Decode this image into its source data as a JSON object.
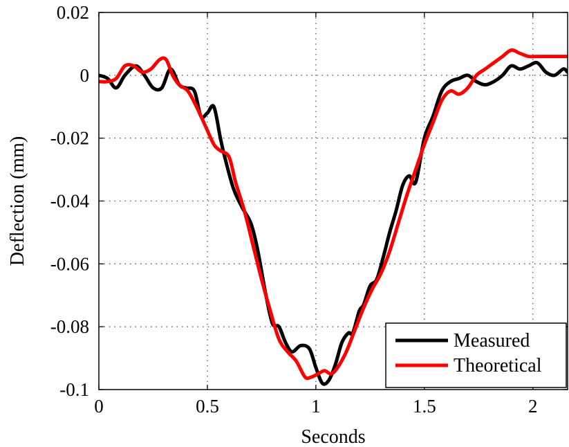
{
  "chart_data": {
    "type": "line",
    "title": "",
    "xlabel": "Seconds",
    "ylabel": "Deflection (mm)",
    "xlim": [
      0,
      2.16
    ],
    "ylim": [
      -0.1,
      0.02
    ],
    "xticks": [
      0,
      0.5,
      1,
      1.5,
      2
    ],
    "xtick_labels": [
      "0",
      "0.5",
      "1",
      "1.5",
      "2"
    ],
    "yticks": [
      0.02,
      0,
      -0.02,
      -0.04,
      -0.06,
      -0.08,
      -0.1
    ],
    "ytick_labels": [
      "0.02",
      "0",
      "-0.02",
      "-0.04",
      "-0.06",
      "-0.08",
      "-0.1"
    ],
    "grid": true,
    "legend_position": "bottom-right",
    "series": [
      {
        "name": "Measured",
        "color": "#000000",
        "x": [
          0,
          0.04,
          0.08,
          0.12,
          0.17,
          0.21,
          0.25,
          0.29,
          0.33,
          0.37,
          0.4,
          0.44,
          0.47,
          0.5,
          0.53,
          0.56,
          0.58,
          0.62,
          0.66,
          0.7,
          0.73,
          0.77,
          0.8,
          0.83,
          0.86,
          0.89,
          0.93,
          0.97,
          1.0,
          1.03,
          1.06,
          1.09,
          1.12,
          1.15,
          1.17,
          1.2,
          1.22,
          1.25,
          1.28,
          1.31,
          1.34,
          1.37,
          1.4,
          1.43,
          1.46,
          1.5,
          1.54,
          1.58,
          1.62,
          1.66,
          1.7,
          1.74,
          1.78,
          1.82,
          1.86,
          1.9,
          1.94,
          1.98,
          2.02,
          2.06,
          2.1,
          2.14,
          2.16
        ],
        "y": [
          0.0,
          -0.001,
          -0.004,
          0.0,
          0.003,
          0.0,
          -0.004,
          -0.004,
          0.002,
          -0.003,
          -0.004,
          -0.005,
          -0.013,
          -0.012,
          -0.01,
          -0.02,
          -0.026,
          -0.036,
          -0.042,
          -0.047,
          -0.055,
          -0.07,
          -0.079,
          -0.08,
          -0.085,
          -0.088,
          -0.086,
          -0.087,
          -0.093,
          -0.098,
          -0.097,
          -0.092,
          -0.085,
          -0.082,
          -0.082,
          -0.075,
          -0.073,
          -0.067,
          -0.065,
          -0.058,
          -0.05,
          -0.043,
          -0.035,
          -0.032,
          -0.034,
          -0.02,
          -0.013,
          -0.005,
          -0.002,
          -0.001,
          0.0,
          -0.002,
          -0.003,
          -0.002,
          0.0,
          0.003,
          0.002,
          0.003,
          0.004,
          0.001,
          0.0,
          0.002,
          0.001
        ]
      },
      {
        "name": "Theoretical",
        "color": "#ff0000",
        "x": [
          0,
          0.04,
          0.08,
          0.12,
          0.16,
          0.2,
          0.24,
          0.28,
          0.31,
          0.34,
          0.37,
          0.41,
          0.45,
          0.49,
          0.53,
          0.56,
          0.6,
          0.63,
          0.67,
          0.71,
          0.75,
          0.79,
          0.83,
          0.87,
          0.91,
          0.95,
          0.98,
          1.01,
          1.04,
          1.07,
          1.1,
          1.14,
          1.18,
          1.22,
          1.26,
          1.3,
          1.34,
          1.38,
          1.42,
          1.46,
          1.5,
          1.54,
          1.58,
          1.62,
          1.66,
          1.7,
          1.74,
          1.78,
          1.82,
          1.86,
          1.9,
          1.94,
          1.98,
          2.02,
          2.06,
          2.1,
          2.16
        ],
        "y": [
          -0.002,
          -0.002,
          -0.001,
          0.003,
          0.003,
          0.001,
          0.002,
          0.005,
          0.005,
          0.0,
          -0.003,
          -0.005,
          -0.01,
          -0.016,
          -0.022,
          -0.024,
          -0.026,
          -0.034,
          -0.043,
          -0.054,
          -0.065,
          -0.075,
          -0.084,
          -0.088,
          -0.091,
          -0.096,
          -0.096,
          -0.095,
          -0.094,
          -0.095,
          -0.093,
          -0.088,
          -0.081,
          -0.074,
          -0.068,
          -0.063,
          -0.056,
          -0.047,
          -0.038,
          -0.03,
          -0.022,
          -0.015,
          -0.008,
          -0.005,
          -0.006,
          -0.004,
          0.0,
          0.002,
          0.004,
          0.006,
          0.008,
          0.007,
          0.006,
          0.006,
          0.006,
          0.006,
          0.006
        ]
      }
    ]
  }
}
